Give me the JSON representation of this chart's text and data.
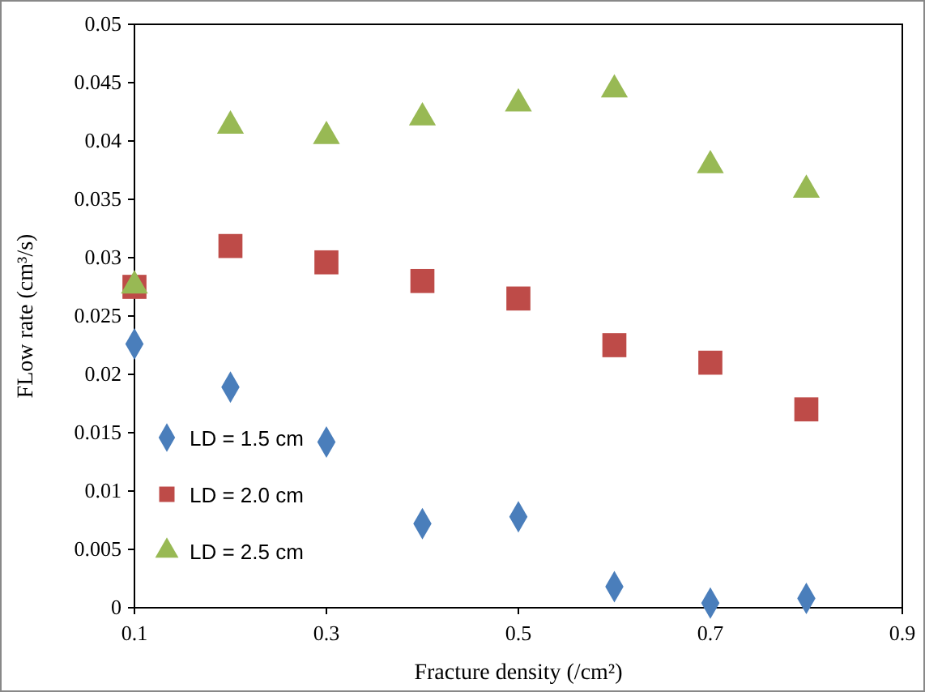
{
  "chart_data": {
    "type": "scatter",
    "xlabel": "Fracture density (/cm²)",
    "ylabel": "FLow rate (cm³/s)",
    "x": [
      0.1,
      0.2,
      0.3,
      0.4,
      0.5,
      0.6,
      0.7,
      0.8
    ],
    "series": [
      {
        "name": "LD = 1.5 cm",
        "color": "#4a7ebb",
        "marker": "diamond",
        "values": [
          0.0226,
          0.0189,
          0.0142,
          0.0072,
          0.0078,
          0.0018,
          0.0004,
          0.0008
        ]
      },
      {
        "name": "LD = 2.0 cm",
        "color": "#be4b48",
        "marker": "square",
        "values": [
          0.0275,
          0.031,
          0.0296,
          0.028,
          0.0265,
          0.0225,
          0.021,
          0.017
        ]
      },
      {
        "name": "LD = 2.5 cm",
        "color": "#98b954",
        "marker": "triangle",
        "values": [
          0.0276,
          0.0413,
          0.0404,
          0.042,
          0.0432,
          0.0444,
          0.0379,
          0.0358
        ]
      }
    ],
    "xlim": [
      0.1,
      0.9
    ],
    "xticks": [
      0.1,
      0.3,
      0.5,
      0.7,
      0.9
    ],
    "ylim": [
      0,
      0.05
    ],
    "yticks": [
      0,
      0.005,
      0.01,
      0.015,
      0.02,
      0.025,
      0.03,
      0.035,
      0.04,
      0.045,
      0.05
    ],
    "grid": false,
    "legend": "bottom left"
  }
}
